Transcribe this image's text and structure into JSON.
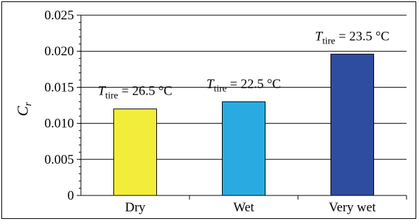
{
  "chart_data": {
    "type": "bar",
    "categories": [
      "Dry",
      "Wet",
      "Very wet"
    ],
    "values": [
      0.012,
      0.013,
      0.0196
    ],
    "colors": [
      "#f2ec3a",
      "#29abe2",
      "#2e4da0"
    ],
    "ylabel": "C",
    "ylabel_sub": "r",
    "ylim": [
      0,
      0.025
    ],
    "yticks": [
      "0",
      "0.005",
      "0.010",
      "0.015",
      "0.020",
      "0.025"
    ],
    "ytick_values": [
      0,
      0.005,
      0.01,
      0.015,
      0.02,
      0.025
    ],
    "grid": true,
    "annotations": [
      {
        "var": "T",
        "sub": "tire",
        "text": " = 26.5 °C"
      },
      {
        "var": "T",
        "sub": "tire",
        "text": " = 22.5 °C"
      },
      {
        "var": "T",
        "sub": "tire",
        "text": " = 23.5 °C"
      }
    ]
  }
}
